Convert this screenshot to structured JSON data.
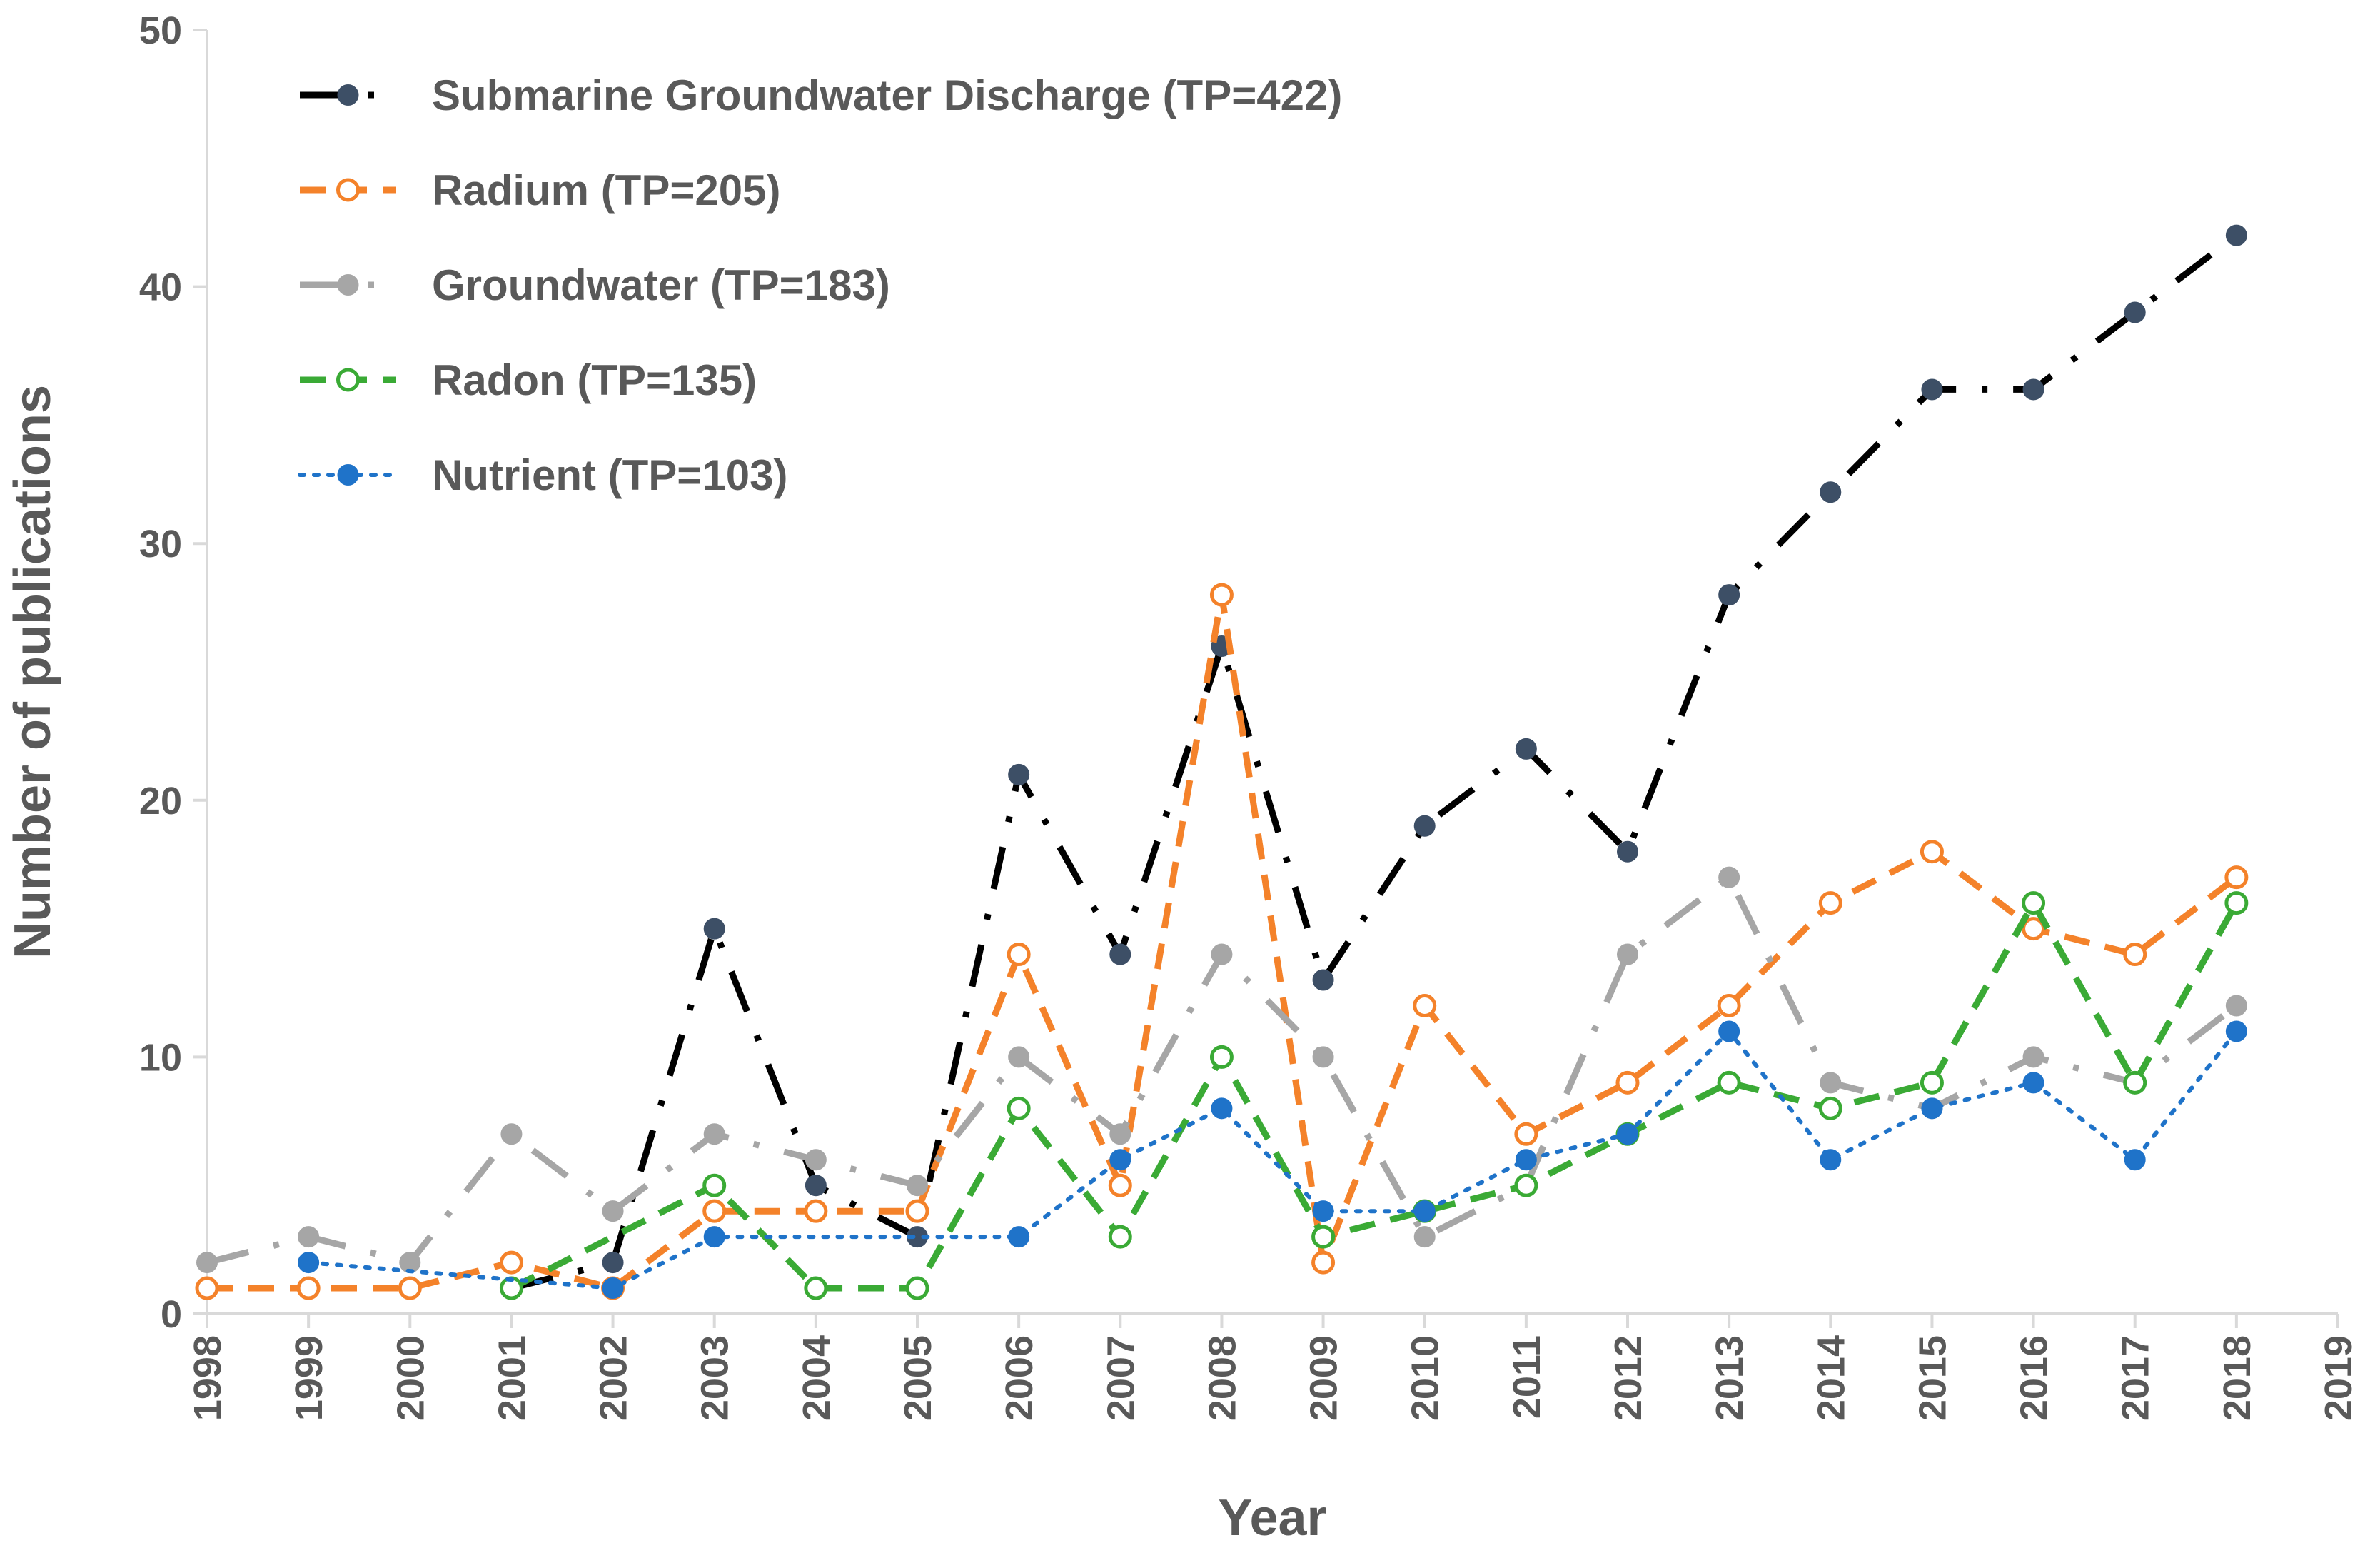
{
  "chart_data": {
    "type": "line",
    "title": "",
    "xlabel": "Year",
    "ylabel": "Number of publications",
    "xlim": [
      1998,
      2019
    ],
    "ylim": [
      0,
      50
    ],
    "x_ticks": [
      "1998",
      "1999",
      "2000",
      "2001",
      "2002",
      "2003",
      "2004",
      "2005",
      "2006",
      "2007",
      "2008",
      "2009",
      "2010",
      "2011",
      "2012",
      "2013",
      "2014",
      "2015",
      "2016",
      "2017",
      "2018",
      "2019"
    ],
    "y_ticks": [
      "0",
      "10",
      "20",
      "30",
      "40",
      "50"
    ],
    "grid": false,
    "legend_position": "top-left",
    "series": [
      {
        "name": "Submarine Groundwater Discharge (TP=422)",
        "color": "#000000",
        "marker_color": "#3d4f66",
        "marker": "filled-circle",
        "dash": "long-dash-dot",
        "x": [
          2001,
          2002,
          2003,
          2004,
          2005,
          2006,
          2007,
          2008,
          2009,
          2010,
          2011,
          2012,
          2013,
          2014,
          2015,
          2016,
          2017,
          2018
        ],
        "values": [
          1,
          2,
          15,
          5,
          3,
          21,
          14,
          26,
          13,
          19,
          22,
          18,
          28,
          32,
          36,
          36,
          39,
          42
        ]
      },
      {
        "name": "Radium (TP=205)",
        "color": "#f4822a",
        "marker": "open-circle",
        "dash": "dash",
        "x": [
          1998,
          1999,
          2000,
          2001,
          2002,
          2003,
          2004,
          2005,
          2006,
          2007,
          2008,
          2009,
          2010,
          2011,
          2012,
          2013,
          2014,
          2015,
          2016,
          2017,
          2018
        ],
        "values": [
          1,
          1,
          1,
          2,
          1,
          4,
          4,
          4,
          14,
          5,
          28,
          2,
          12,
          7,
          9,
          12,
          16,
          18,
          15,
          14,
          17
        ]
      },
      {
        "name": "Groundwater (TP=183)",
        "color": "#a6a6a6",
        "marker": "filled-circle",
        "dash": "long-dash-dot",
        "x": [
          1998,
          1999,
          2000,
          2001,
          2002,
          2003,
          2004,
          2005,
          2006,
          2007,
          2008,
          2009,
          2010,
          2011,
          2012,
          2013,
          2014,
          2015,
          2016,
          2017,
          2018
        ],
        "values": [
          2,
          3,
          2,
          7,
          4,
          7,
          6,
          5,
          10,
          7,
          14,
          10,
          3,
          5,
          14,
          17,
          9,
          8,
          10,
          9,
          12
        ]
      },
      {
        "name": "Radon (TP=135)",
        "color": "#3aaa35",
        "marker": "open-circle",
        "dash": "dash",
        "x": [
          2001,
          2003,
          2004,
          2005,
          2006,
          2007,
          2008,
          2009,
          2010,
          2011,
          2012,
          2013,
          2014,
          2015,
          2016,
          2017,
          2018
        ],
        "values": [
          1,
          5,
          1,
          1,
          8,
          3,
          10,
          3,
          4,
          5,
          7,
          9,
          8,
          9,
          16,
          9,
          16
        ]
      },
      {
        "name": "Nutrient (TP=103)",
        "color": "#1f73c9",
        "marker": "filled-circle",
        "dash": "dot",
        "x": [
          1999,
          2002,
          2003,
          2006,
          2007,
          2008,
          2009,
          2010,
          2011,
          2012,
          2013,
          2014,
          2015,
          2016,
          2017,
          2018
        ],
        "values": [
          2,
          1,
          3,
          3,
          6,
          8,
          4,
          4,
          6,
          7,
          11,
          6,
          8,
          9,
          6,
          11
        ]
      }
    ]
  }
}
